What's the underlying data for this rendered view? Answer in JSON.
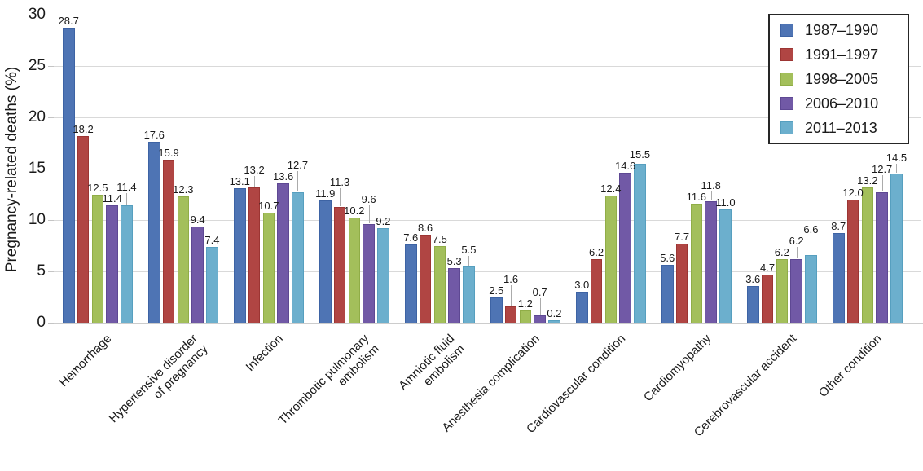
{
  "chart_data": {
    "type": "bar",
    "title": "",
    "xlabel": "",
    "ylabel": "Pregnancy-related deaths (%)",
    "ylim": [
      0,
      30
    ],
    "yticks": [
      0,
      5,
      10,
      15,
      20,
      25,
      30
    ],
    "grid": true,
    "legend_position": "top-right",
    "value_label_decimals": 1,
    "categories": [
      [
        "Hemorrhage"
      ],
      [
        "Hypertensive disorder",
        "of pregnancy"
      ],
      [
        "Infection"
      ],
      [
        "Thrombotic pulmonary",
        "embolism"
      ],
      [
        "Amniotic fluid",
        "embolism"
      ],
      [
        "Anesthesia complication"
      ],
      [
        "Cardiovascular condition"
      ],
      [
        "Cardiomyopathy"
      ],
      [
        "Cerebrovascular accident"
      ],
      [
        "Other condition"
      ]
    ],
    "series": [
      {
        "name": "1987–1990",
        "color": "#4e74b4",
        "border": "#3d63a4",
        "values": [
          28.7,
          17.6,
          13.1,
          11.9,
          7.6,
          2.5,
          3.0,
          5.6,
          3.6,
          8.7
        ]
      },
      {
        "name": "1991–1997",
        "color": "#b04543",
        "border": "#9c3533",
        "values": [
          18.2,
          15.9,
          13.2,
          11.3,
          8.6,
          1.6,
          6.2,
          7.7,
          4.7,
          12.0
        ]
      },
      {
        "name": "1998–2005",
        "color": "#a3bf5b",
        "border": "#90ad47",
        "values": [
          12.5,
          12.3,
          10.7,
          10.2,
          7.5,
          1.2,
          12.4,
          11.6,
          6.2,
          13.2
        ]
      },
      {
        "name": "2006–2010",
        "color": "#7159a6",
        "border": "#5e4893",
        "values": [
          11.4,
          9.4,
          13.6,
          9.6,
          5.3,
          0.7,
          14.6,
          11.8,
          6.2,
          12.7
        ]
      },
      {
        "name": "2011–2013",
        "color": "#6cafcd",
        "border": "#569fbf",
        "values": [
          11.4,
          7.4,
          12.7,
          9.2,
          5.5,
          0.2,
          15.5,
          11.0,
          6.6,
          14.5
        ]
      }
    ]
  }
}
